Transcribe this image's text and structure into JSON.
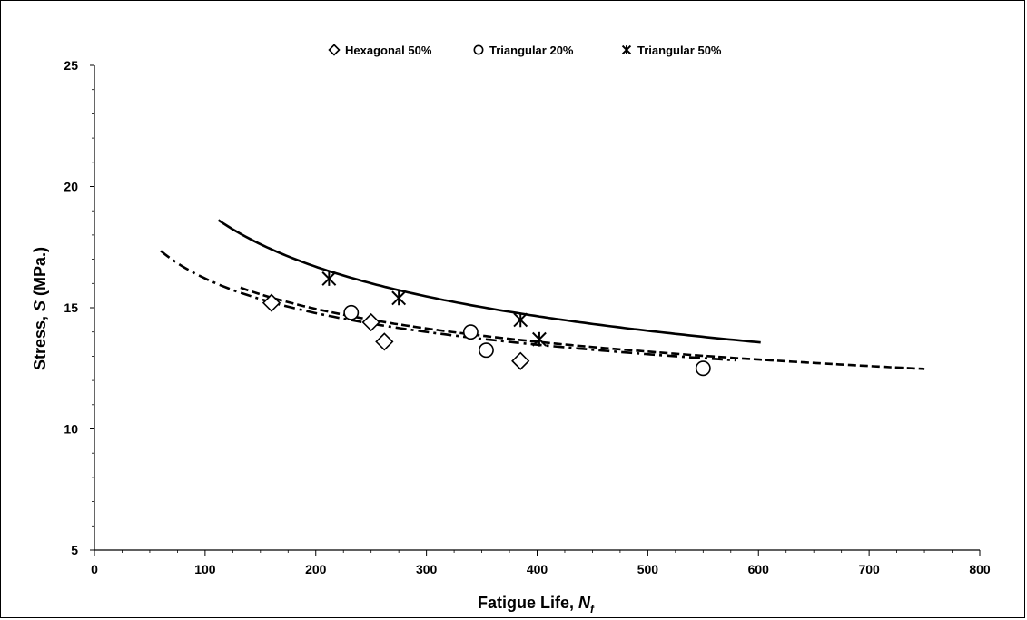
{
  "chart_data": {
    "type": "scatter",
    "xlabel_main": "Fatigue Life, ",
    "xlabel_symbol": "N",
    "xlabel_sub": "f",
    "ylabel_main": "Stress, ",
    "ylabel_symbol": "S",
    "ylabel_unit": " (MPa.)",
    "xlim": [
      0,
      800
    ],
    "ylim": [
      5,
      25
    ],
    "x_ticks": [
      0,
      100,
      200,
      300,
      400,
      500,
      600,
      700,
      800
    ],
    "y_ticks": [
      5,
      10,
      15,
      20,
      25
    ],
    "legend_position": "top-center",
    "grid": false,
    "series": [
      {
        "name": "Hexagonal 50%",
        "marker": "diamond",
        "points": [
          [
            160,
            15.2
          ],
          [
            250,
            14.4
          ],
          [
            262,
            13.6
          ],
          [
            385,
            12.8
          ]
        ],
        "fit": {
          "style": "dash-dot",
          "a": 29.9,
          "b": -0.133,
          "x_range": [
            60,
            580
          ]
        }
      },
      {
        "name": "Triangular 20%",
        "marker": "circle",
        "points": [
          [
            232,
            14.8
          ],
          [
            340,
            14.0
          ],
          [
            354,
            13.25
          ],
          [
            550,
            12.5
          ]
        ],
        "fit": {
          "style": "dashed",
          "a": 30.9,
          "b": -0.137,
          "x_range": [
            132,
            750
          ]
        }
      },
      {
        "name": "Triangular 50%",
        "marker": "asterisk",
        "points": [
          [
            212,
            16.2
          ],
          [
            275,
            15.4
          ],
          [
            385,
            14.5
          ],
          [
            402,
            13.7
          ]
        ],
        "fit": {
          "style": "solid",
          "a": 45.2,
          "b": -0.188,
          "x_range": [
            112,
            602
          ]
        }
      }
    ],
    "colors": {
      "line": "#000000",
      "background": "#ffffff"
    }
  }
}
